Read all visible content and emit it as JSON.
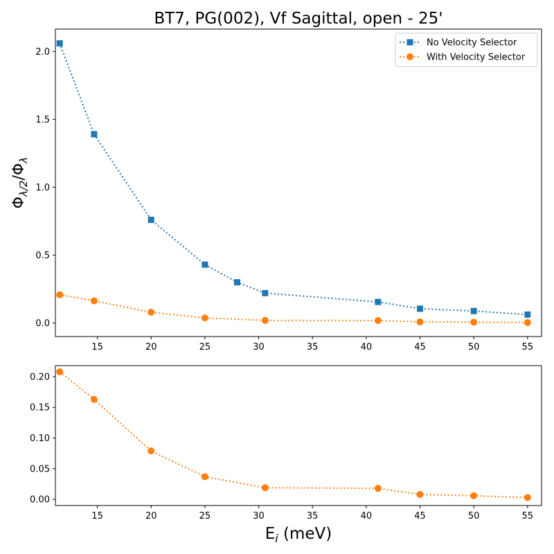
{
  "chart_data": [
    {
      "type": "line",
      "title": "BT7, PG(002), Vf Sagittal, open - 25'",
      "xlabel": "",
      "ylabel": "Φλ/2/Φλ",
      "ylabel_parts": {
        "main": "Φ",
        "sub1": "λ/2",
        "slash": "/Φ",
        "sub2": "λ"
      },
      "xlim": [
        11.1,
        56.3
      ],
      "ylim": [
        -0.1,
        2.165
      ],
      "xticks": [
        15,
        20,
        25,
        30,
        35,
        40,
        45,
        50,
        55
      ],
      "yticks": [
        0.0,
        0.5,
        1.0,
        1.5,
        2.0
      ],
      "ytick_labels": [
        "0.0",
        "0.5",
        "1.0",
        "1.5",
        "2.0"
      ],
      "grid": false,
      "legend_position": "top-right",
      "series": [
        {
          "name": "No Velocity Selector",
          "color": "#1f77b4",
          "marker": "square",
          "linestyle": "dotted",
          "x": [
            11.5,
            14.7,
            20,
            25,
            28,
            30.6,
            41.1,
            45,
            50,
            55
          ],
          "y": [
            2.06,
            1.39,
            0.76,
            0.43,
            0.3,
            0.22,
            0.155,
            0.105,
            0.088,
            0.062
          ]
        },
        {
          "name": "With Velocity Selector",
          "color": "#ff7f0e",
          "marker": "circle",
          "linestyle": "dotted",
          "x": [
            11.5,
            14.7,
            20,
            25,
            30.6,
            41.1,
            45,
            50,
            55
          ],
          "y": [
            0.208,
            0.163,
            0.079,
            0.037,
            0.019,
            0.018,
            0.008,
            0.006,
            0.003
          ]
        }
      ]
    },
    {
      "type": "line",
      "title": "",
      "xlabel": "Ei (meV)",
      "xlabel_parts": {
        "main": "E",
        "sub": "i",
        "rest": " (meV)"
      },
      "ylabel": "",
      "xlim": [
        11.1,
        56.3
      ],
      "ylim": [
        -0.01,
        0.218
      ],
      "xticks": [
        15,
        20,
        25,
        30,
        35,
        40,
        45,
        50,
        55
      ],
      "yticks": [
        0.0,
        0.05,
        0.1,
        0.15,
        0.2
      ],
      "ytick_labels": [
        "0.00",
        "0.05",
        "0.10",
        "0.15",
        "0.20"
      ],
      "grid": false,
      "series": [
        {
          "color": "#ff7f0e",
          "marker": "circle",
          "linestyle": "dotted",
          "x": [
            11.5,
            14.7,
            20,
            25,
            30.6,
            41.1,
            45,
            50,
            55
          ],
          "y": [
            0.208,
            0.163,
            0.079,
            0.037,
            0.019,
            0.018,
            0.008,
            0.006,
            0.003
          ]
        }
      ]
    }
  ]
}
